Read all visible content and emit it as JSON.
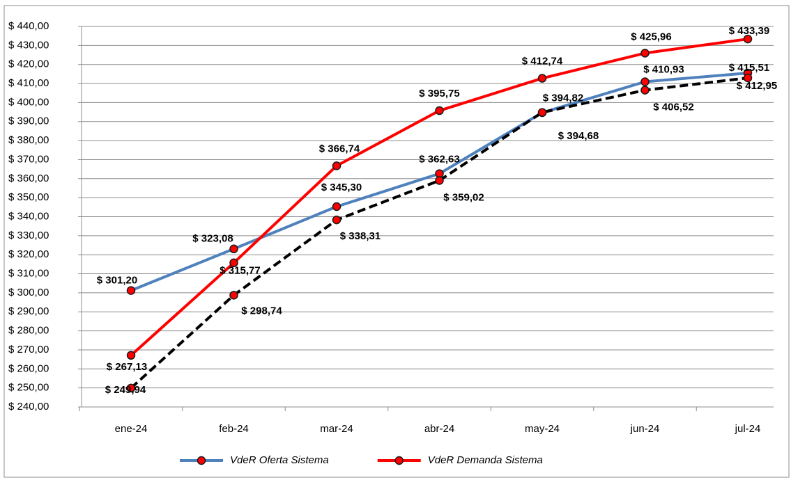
{
  "chart_data": {
    "type": "line",
    "categories": [
      "ene-24",
      "feb-24",
      "mar-24",
      "abr-24",
      "may-24",
      "jun-24",
      "jul-24"
    ],
    "series": [
      {
        "name": "VdeR Oferta Sistema",
        "color": "#4f81bd",
        "label_color": "#4a76a8",
        "dashed": false,
        "values": [
          301.2,
          323.08,
          345.3,
          362.63,
          394.68,
          410.93,
          415.51
        ],
        "value_labels": [
          "$ 301,20",
          "$ 323,08",
          "$ 345,30",
          "$ 362,63",
          "$ 394,68",
          "$ 410,93",
          "$ 415,51"
        ]
      },
      {
        "name": "VdeR Demanda Sistema",
        "color": "#ff0000",
        "label_color": "#ff0000",
        "dashed": false,
        "values": [
          267.13,
          315.77,
          366.74,
          395.75,
          412.74,
          425.96,
          433.39
        ],
        "value_labels": [
          "$ 267,13",
          "$ 315,77",
          "$ 366,74",
          "$ 395,75",
          "$ 412,74",
          "$ 425,96",
          "$ 433,39"
        ]
      },
      {
        "color": "#000000",
        "label_color": "#000000",
        "dashed": true,
        "values": [
          249.94,
          298.74,
          338.31,
          359.02,
          394.82,
          406.52,
          412.95
        ],
        "value_labels": [
          "$ 249,94",
          "$ 298,74",
          "$ 338,31",
          "$ 359,02",
          "$ 394,82",
          "$ 406,52",
          "$ 412,95"
        ]
      }
    ],
    "ylim": [
      240,
      440
    ],
    "yticks": [
      {
        "value": 240,
        "label": "$ 240,00"
      },
      {
        "value": 250,
        "label": "$ 250,00"
      },
      {
        "value": 260,
        "label": "$ 260,00"
      },
      {
        "value": 270,
        "label": "$ 270,00"
      },
      {
        "value": 280,
        "label": "$ 280,00"
      },
      {
        "value": 290,
        "label": "$ 290,00"
      },
      {
        "value": 300,
        "label": "$ 300,00"
      },
      {
        "value": 310,
        "label": "$ 310,00"
      },
      {
        "value": 320,
        "label": "$ 320,00"
      },
      {
        "value": 330,
        "label": "$ 330,00"
      },
      {
        "value": 340,
        "label": "$ 340,00"
      },
      {
        "value": 350,
        "label": "$ 350,00"
      },
      {
        "value": 360,
        "label": "$ 360,00"
      },
      {
        "value": 370,
        "label": "$ 370,00"
      },
      {
        "value": 380,
        "label": "$ 380,00"
      },
      {
        "value": 390,
        "label": "$ 390,00"
      },
      {
        "value": 400,
        "label": "$ 400,00"
      },
      {
        "value": 410,
        "label": "$ 410,00"
      },
      {
        "value": 420,
        "label": "$ 420,00"
      },
      {
        "value": 430,
        "label": "$ 430,00"
      },
      {
        "value": 440,
        "label": "$ 440,00"
      }
    ],
    "grid": true,
    "legend": "bottom"
  }
}
